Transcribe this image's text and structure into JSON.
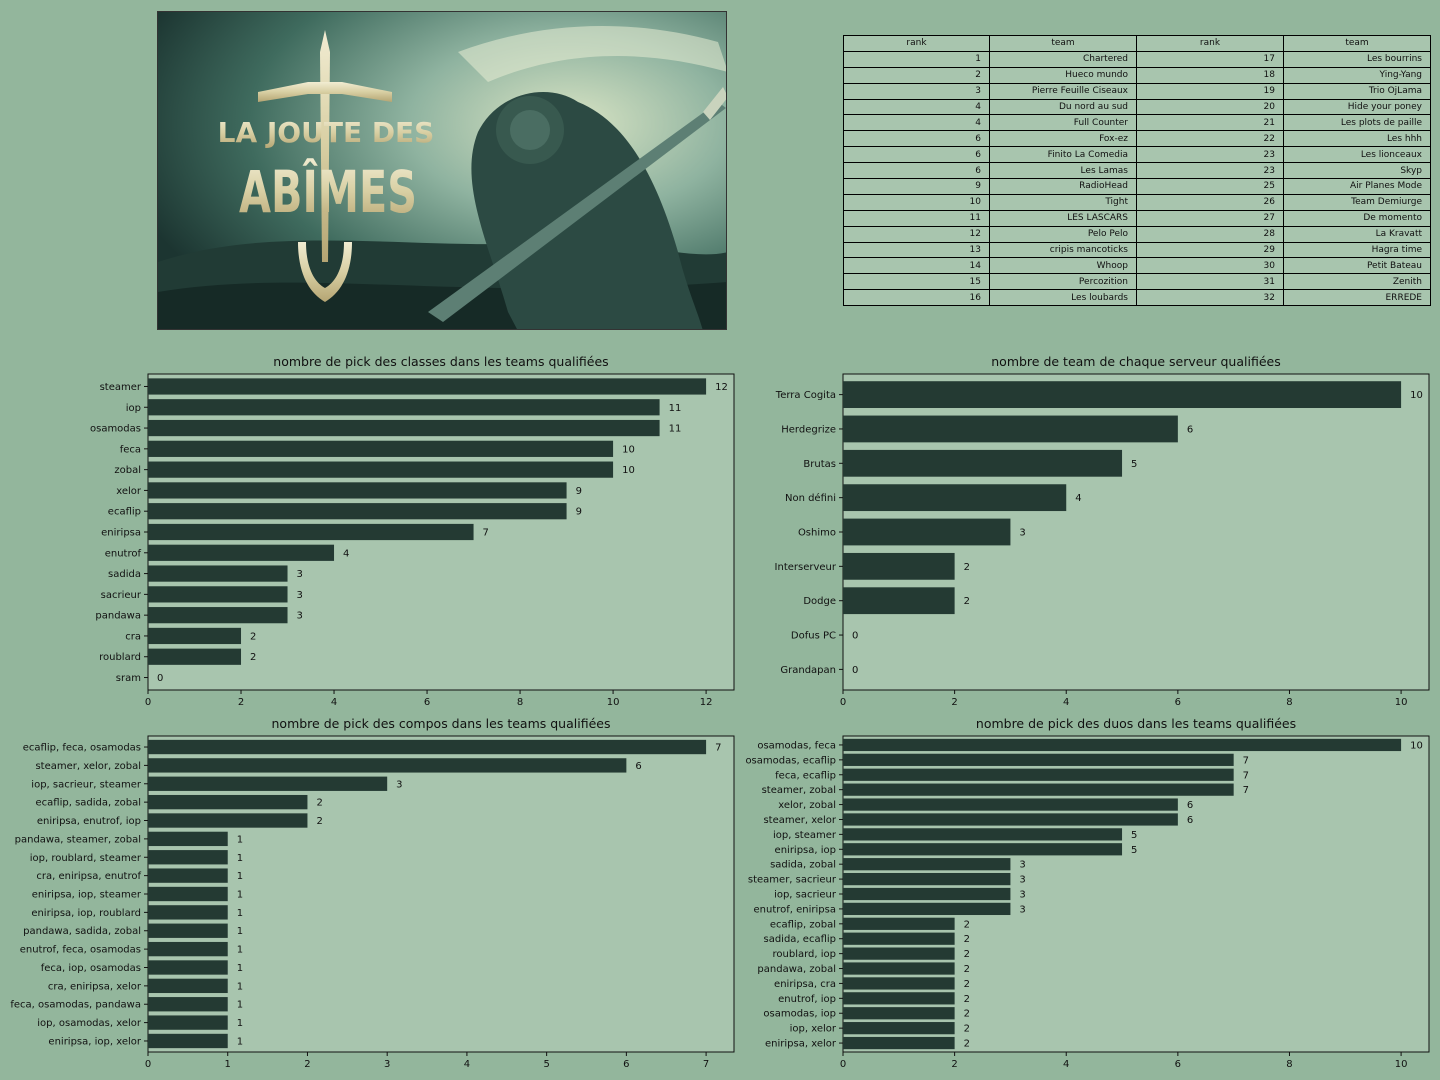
{
  "banner": {
    "title_line1": "LA JOUTE DES",
    "title_line2": "ABÎMES"
  },
  "ranking": {
    "headers": [
      "rank",
      "team",
      "rank",
      "team"
    ],
    "rows": [
      [
        "1",
        "Chartered",
        "17",
        "Les bourrins"
      ],
      [
        "2",
        "Hueco mundo",
        "18",
        "Ying-Yang"
      ],
      [
        "3",
        "Pierre Feuille Ciseaux",
        "19",
        "Trio OjLama"
      ],
      [
        "4",
        "Du nord au sud",
        "20",
        "Hide your poney"
      ],
      [
        "4",
        "Full Counter",
        "21",
        "Les plots de paille"
      ],
      [
        "6",
        "Fox-ez",
        "22",
        "Les hhh"
      ],
      [
        "6",
        "Finito La Comedia",
        "23",
        "Les lionceaux"
      ],
      [
        "6",
        "Les Lamas",
        "23",
        "Skyp"
      ],
      [
        "9",
        "RadioHead",
        "25",
        "Air Planes Mode"
      ],
      [
        "10",
        "Tight",
        "26",
        "Team Demiurge"
      ],
      [
        "11",
        "LES LASCARS",
        "27",
        "De momento"
      ],
      [
        "12",
        "Pelo Pelo",
        "28",
        "La Kravatt"
      ],
      [
        "13",
        "cripis mancoticks",
        "29",
        "Hagra time"
      ],
      [
        "14",
        "Whoop",
        "30",
        "Petit Bateau"
      ],
      [
        "15",
        "Percozition",
        "31",
        "Zenith"
      ],
      [
        "16",
        "Les loubards",
        "32",
        "ERREDE"
      ]
    ]
  },
  "colors": {
    "background": "#93b69c",
    "plot_area": "#a8c5ae",
    "bar": "#243a33"
  },
  "chart_data": [
    {
      "type": "bar",
      "orientation": "horizontal",
      "title": "nombre de pick des classes dans les teams qualifiées",
      "categories": [
        "steamer",
        "iop",
        "osamodas",
        "feca",
        "zobal",
        "xelor",
        "ecaflip",
        "eniripsa",
        "enutrof",
        "sadida",
        "sacrieur",
        "pandawa",
        "cra",
        "roublard",
        "sram"
      ],
      "values": [
        12,
        11,
        11,
        10,
        10,
        9,
        9,
        7,
        4,
        3,
        3,
        3,
        2,
        2,
        0
      ],
      "xlim": [
        0,
        12.6
      ],
      "xticks": [
        0,
        2,
        4,
        6,
        8,
        10,
        12
      ],
      "grid": false
    },
    {
      "type": "bar",
      "orientation": "horizontal",
      "title": "nombre de team de chaque serveur qualifiées",
      "categories": [
        "Terra Cogita",
        "Herdegrize",
        "Brutas",
        "Non défini",
        "Oshimo",
        "Interserveur",
        "Dodge",
        "Dofus PC",
        "Grandapan"
      ],
      "values": [
        10,
        6,
        5,
        4,
        3,
        2,
        2,
        0,
        0
      ],
      "xlim": [
        0,
        10.5
      ],
      "xticks": [
        0,
        2,
        4,
        6,
        8,
        10
      ],
      "grid": false
    },
    {
      "type": "bar",
      "orientation": "horizontal",
      "title": "nombre de pick des compos dans les teams qualifiées",
      "categories": [
        "ecaflip, feca, osamodas",
        "steamer, xelor, zobal",
        "iop, sacrieur, steamer",
        "ecaflip, sadida, zobal",
        "eniripsa, enutrof, iop",
        "pandawa, steamer, zobal",
        "iop, roublard, steamer",
        "cra, eniripsa, enutrof",
        "eniripsa, iop, steamer",
        "eniripsa, iop, roublard",
        "pandawa, sadida, zobal",
        "enutrof, feca, osamodas",
        "feca, iop, osamodas",
        "cra, eniripsa, xelor",
        "feca, osamodas, pandawa",
        "iop, osamodas, xelor",
        "eniripsa, iop, xelor"
      ],
      "values": [
        7,
        6,
        3,
        2,
        2,
        1,
        1,
        1,
        1,
        1,
        1,
        1,
        1,
        1,
        1,
        1,
        1
      ],
      "xlim": [
        0,
        7.35
      ],
      "xticks": [
        0,
        1,
        2,
        3,
        4,
        5,
        6,
        7
      ],
      "grid": false
    },
    {
      "type": "bar",
      "orientation": "horizontal",
      "title": "nombre de pick des duos dans les teams qualifiées",
      "categories": [
        "osamodas, feca",
        "osamodas, ecaflip",
        "feca, ecaflip",
        "steamer, zobal",
        "xelor, zobal",
        "steamer, xelor",
        "iop, steamer",
        "eniripsa, iop",
        "sadida, zobal",
        "steamer, sacrieur",
        "iop, sacrieur",
        "enutrof, eniripsa",
        "ecaflip, zobal",
        "sadida, ecaflip",
        "roublard, iop",
        "pandawa, zobal",
        "eniripsa, cra",
        "enutrof, iop",
        "osamodas, iop",
        "iop, xelor",
        "eniripsa, xelor"
      ],
      "values": [
        10,
        7,
        7,
        7,
        6,
        6,
        5,
        5,
        3,
        3,
        3,
        3,
        2,
        2,
        2,
        2,
        2,
        2,
        2,
        2,
        2
      ],
      "xlim": [
        0,
        10.5
      ],
      "xticks": [
        0,
        2,
        4,
        6,
        8,
        10
      ],
      "grid": false
    }
  ]
}
